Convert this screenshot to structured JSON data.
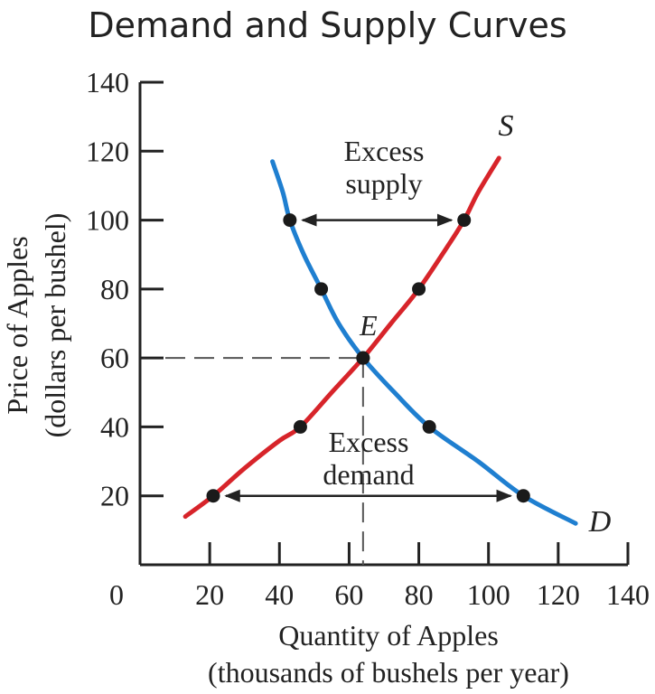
{
  "chart_data": {
    "type": "line",
    "title": "Demand and Supply Curves",
    "xlabel": [
      "Quantity of Apples",
      "(thousands of bushels per year)"
    ],
    "ylabel": [
      "Price of Apples",
      "(dollars per bushel)"
    ],
    "xlim": [
      0,
      140
    ],
    "ylim": [
      0,
      140
    ],
    "xticks": [
      0,
      20,
      40,
      60,
      80,
      100,
      120,
      140
    ],
    "yticks": [
      20,
      40,
      60,
      80,
      100,
      120,
      140
    ],
    "xtick_labels": [
      "0",
      "20",
      "40",
      "60",
      "80",
      "100",
      "120",
      "140"
    ],
    "ytick_labels": [
      "20",
      "40",
      "60",
      "80",
      "100",
      "120",
      "140"
    ],
    "series": [
      {
        "name": "S",
        "color": "#d7242a",
        "x": [
          13,
          21,
          30,
          40,
          46,
          55,
          64,
          72,
          80,
          88,
          93,
          97,
          103
        ],
        "y": [
          14,
          20,
          28,
          36,
          40,
          50,
          60,
          70,
          80,
          92,
          100,
          108,
          118
        ],
        "points": [
          [
            21,
            20
          ],
          [
            46,
            40
          ],
          [
            64,
            60
          ],
          [
            80,
            80
          ],
          [
            93,
            100
          ]
        ]
      },
      {
        "name": "D",
        "color": "#1f7fd0",
        "x": [
          38,
          41,
          43,
          47,
          52,
          57,
          64,
          73,
          83,
          97,
          110,
          125
        ],
        "y": [
          117,
          108,
          100,
          90,
          80,
          70,
          60,
          50,
          40,
          30,
          20,
          12
        ],
        "points": [
          [
            43,
            100
          ],
          [
            52,
            80
          ],
          [
            64,
            60
          ],
          [
            83,
            40
          ],
          [
            110,
            20
          ]
        ]
      }
    ],
    "equilibrium": {
      "label": "E",
      "x": 64,
      "y": 60
    },
    "annotations": [
      {
        "text": [
          "Excess",
          "supply"
        ],
        "price": 100,
        "from": 43,
        "to": 93
      },
      {
        "text": [
          "Excess",
          "demand"
        ],
        "price": 20,
        "from": 21,
        "to": 110
      }
    ],
    "curve_labels": {
      "supply": "S",
      "demand": "D"
    },
    "grid": false,
    "legend": "none"
  }
}
